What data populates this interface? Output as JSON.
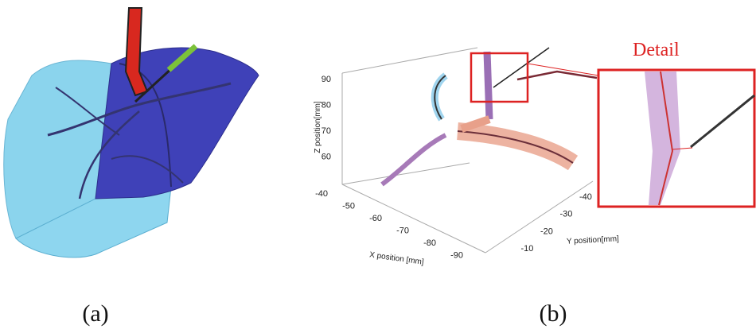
{
  "panel_a": {
    "label": "(a)"
  },
  "panel_b": {
    "label": "(b)",
    "detail_label": "Detail",
    "z_axis": {
      "label": "Z position[mm]",
      "ticks": [
        90,
        80,
        70,
        60
      ]
    },
    "x_axis": {
      "label": "X position [mm]",
      "ticks": [
        -40,
        -50,
        -60,
        -70,
        -80,
        -90
      ]
    },
    "y_axis": {
      "label": "Y position[mm]",
      "ticks": [
        -40,
        -30,
        -20,
        -10
      ]
    }
  }
}
